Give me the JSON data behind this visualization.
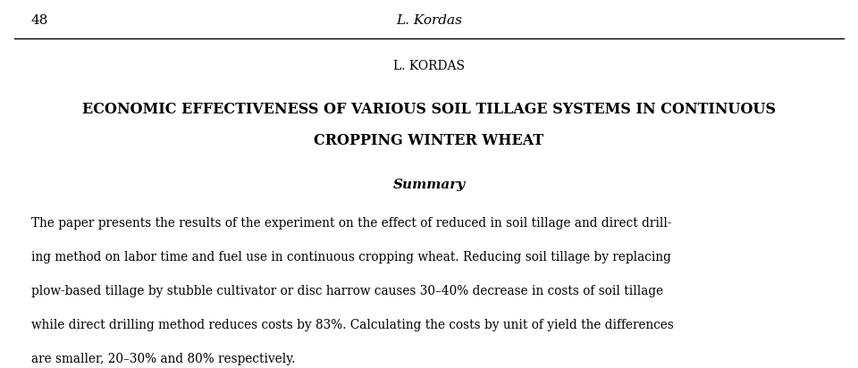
{
  "background_color": "#ffffff",
  "page_number": "48",
  "header_author": "L. Kordas",
  "author_line": "L. KORDAS",
  "title_line1": "ECONOMIC EFFECTIVENESS OF VARIOUS SOIL TILLAGE SYSTEMS IN CONTINUOUS",
  "title_line2": "CROPPING WINTER WHEAT",
  "section_heading": "Summary",
  "body_line1": "The paper presents the results of the experiment on the effect of reduced in soil tillage and direct drill-",
  "body_line2": "ing method on labor time and fuel use in continuous cropping wheat. Reducing soil tillage by replacing",
  "body_line3": "plow-based tillage by stubble cultivator or disc harrow causes 30–40% decrease in costs of soil tillage",
  "body_line4": "while direct drilling method reduces costs by 83%. Calculating the costs by unit of yield the differences",
  "body_line5": "are smaller, 20–30% and 80% respectively."
}
